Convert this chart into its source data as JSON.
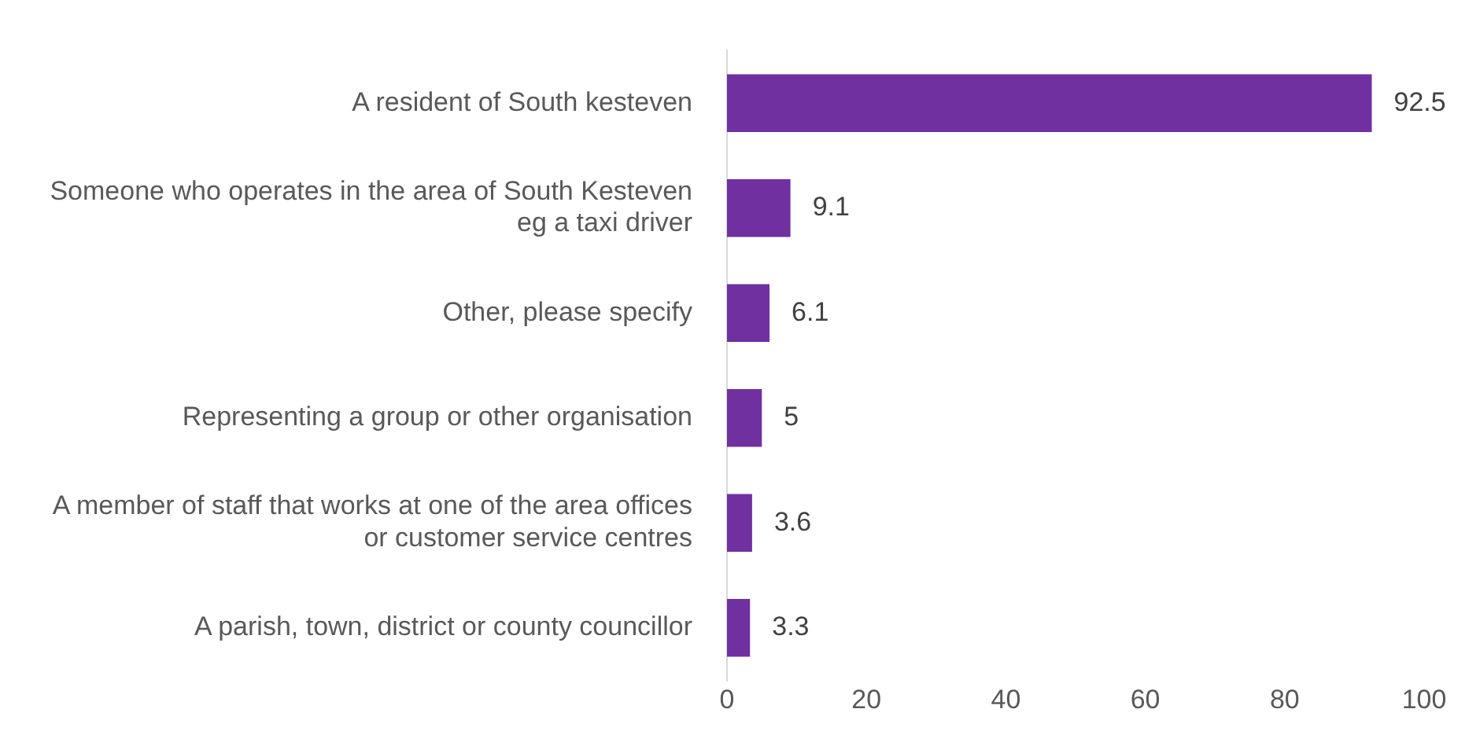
{
  "chart_data": {
    "type": "bar",
    "orientation": "horizontal",
    "categories": [
      "A resident of South kesteven",
      "Someone who operates in the area of South Kesteven eg a taxi driver",
      "Other, please specify",
      "Representing a group or other organisation",
      "A member of staff that works at one of the area offices or customer service centres",
      "A parish, town, district or county councillor"
    ],
    "values": [
      92.5,
      9.1,
      6.1,
      5,
      3.6,
      3.3
    ],
    "color": "#7030a0",
    "xlim": [
      0,
      100
    ],
    "xticks": [
      0,
      20,
      40,
      60,
      80,
      100
    ],
    "grid": false,
    "legend": false,
    "data_labels": true
  }
}
